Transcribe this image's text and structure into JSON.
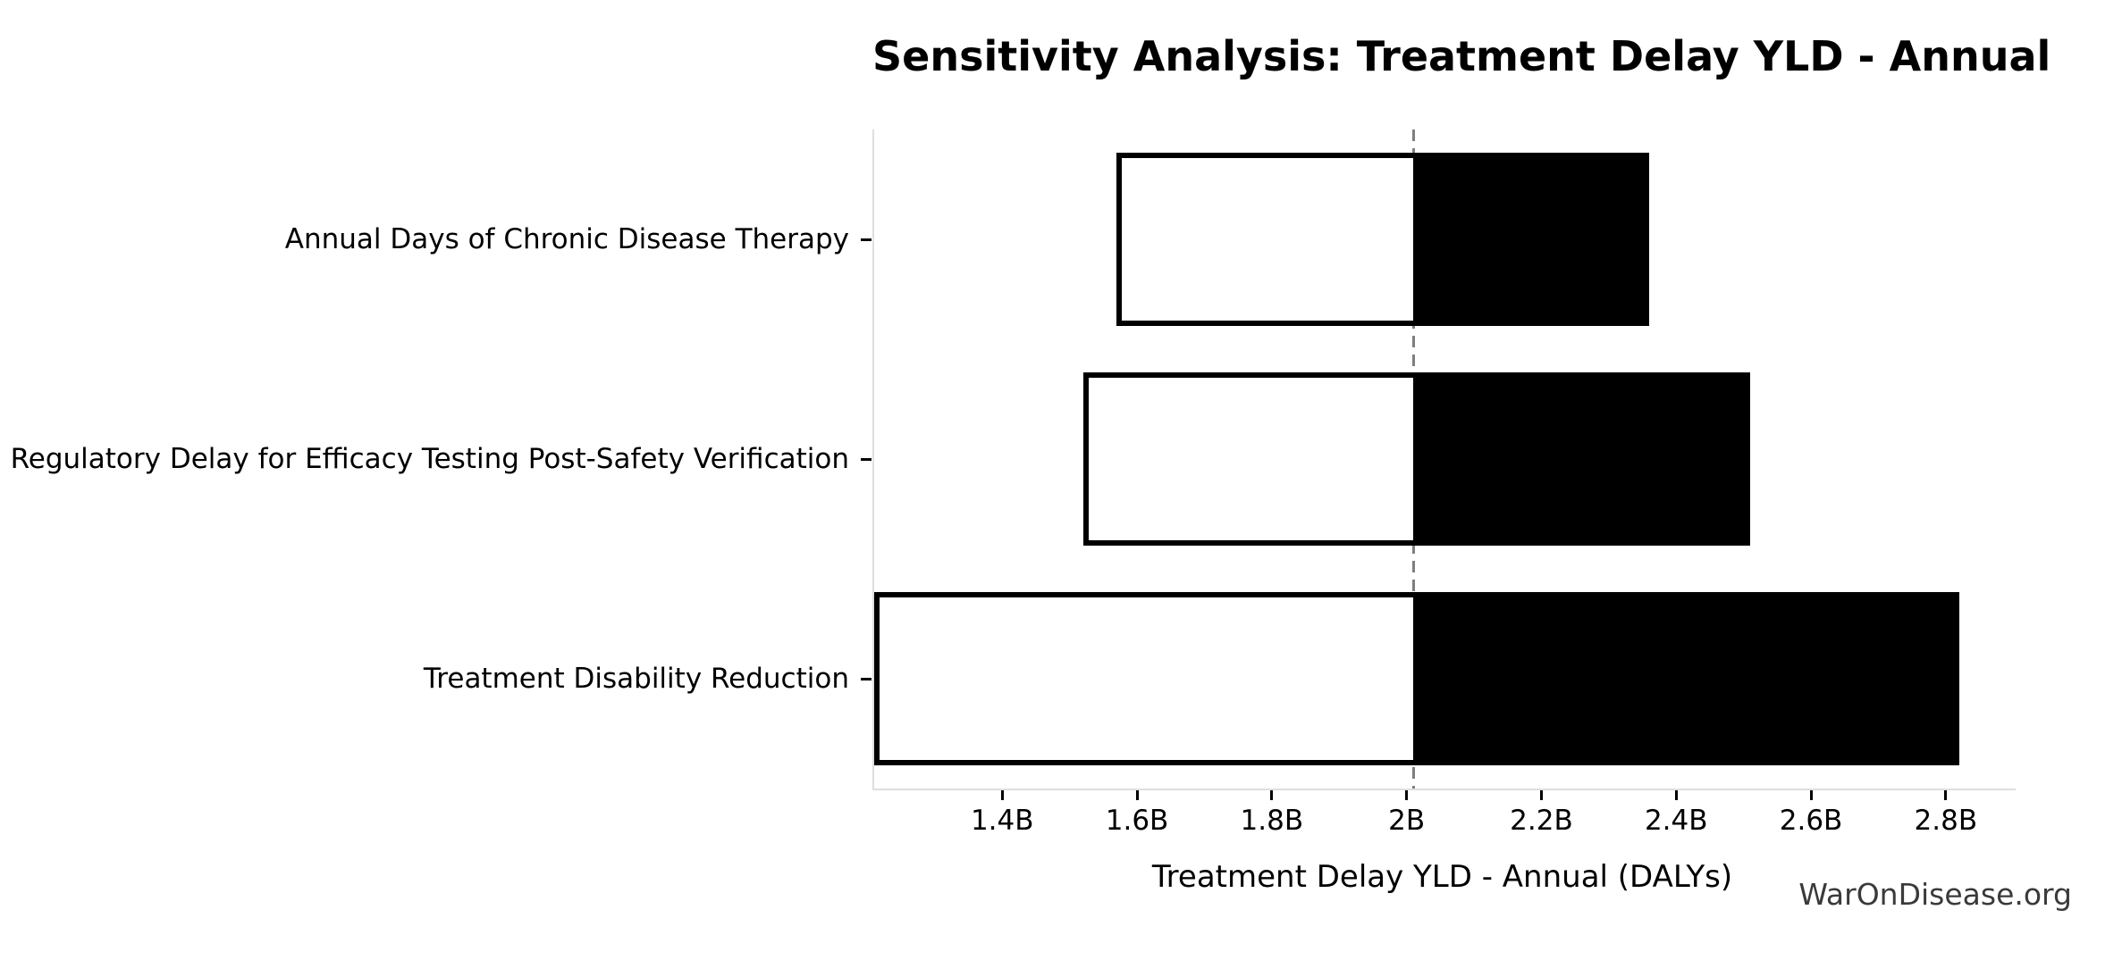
{
  "title": "Sensitivity Analysis: Treatment Delay YLD - Annual",
  "watermark": "WarOnDisease.org",
  "chart_data": {
    "type": "bar",
    "subtype": "tornado-horizontal",
    "title": "Sensitivity Analysis: Treatment Delay YLD - Annual",
    "xlabel": "Treatment Delay YLD - Annual (DALYs)",
    "ylabel": "",
    "unit": "billions of DALYs",
    "baseline": 2.01,
    "xlim": [
      1.21,
      2.901
    ],
    "grid": false,
    "legend": "none",
    "categories": [
      "Annual Days of Chronic Disease Therapy",
      "Regulatory Delay for Efficacy Testing Post-Safety Verification",
      "Treatment Disability Reduction"
    ],
    "series": [
      {
        "name": "low",
        "values": [
          1.57,
          1.52,
          1.21
        ]
      },
      {
        "name": "high",
        "values": [
          2.36,
          2.51,
          2.82
        ]
      }
    ],
    "x_ticks": [
      {
        "value": 1.4,
        "label": "1.4B"
      },
      {
        "value": 1.6,
        "label": "1.6B"
      },
      {
        "value": 1.8,
        "label": "1.8B"
      },
      {
        "value": 2.0,
        "label": "2B"
      },
      {
        "value": 2.2,
        "label": "2.2B"
      },
      {
        "value": 2.4,
        "label": "2.4B"
      },
      {
        "value": 2.6,
        "label": "2.6B"
      },
      {
        "value": 2.8,
        "label": "2.8B"
      }
    ],
    "colors": {
      "low_fill": "#ffffff",
      "high_fill": "#000000",
      "bar_edge": "#000000",
      "baseline_line": "#7f7f7f",
      "spine": "#dedede",
      "tick": "#000000",
      "text": "#000000",
      "watermark_text": "#3a3a3a",
      "background": "#ffffff"
    }
  }
}
